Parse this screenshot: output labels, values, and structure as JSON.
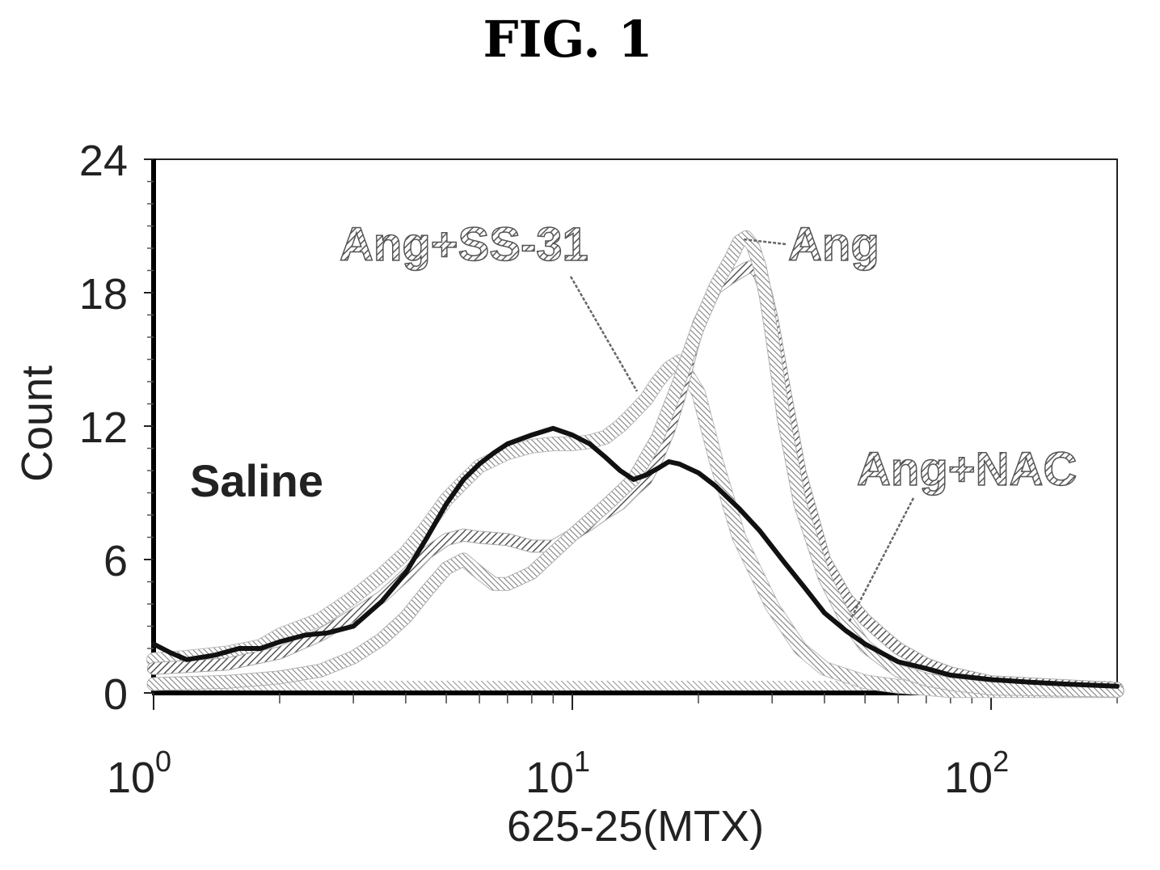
{
  "figure_title": "FIG. 1",
  "chart_data": {
    "type": "line",
    "title": "",
    "xlabel": "625-25(MTX)",
    "ylabel": "Count",
    "x_scale": "log",
    "xlim": [
      1,
      200
    ],
    "ylim": [
      0,
      24
    ],
    "grid": false,
    "y_ticks": [
      "0",
      "6",
      "12",
      "18",
      "24"
    ],
    "y_tick_values": [
      0,
      6,
      12,
      18,
      24
    ],
    "x_ticks": [
      {
        "base": "10",
        "exp": "0",
        "value": 1
      },
      {
        "base": "10",
        "exp": "1",
        "value": 10
      },
      {
        "base": "10",
        "exp": "2",
        "value": 100
      }
    ],
    "series": [
      {
        "name": "Saline",
        "color": "#111111",
        "x": [
          1.0,
          1.1,
          1.2,
          1.4,
          1.6,
          1.8,
          2.0,
          2.3,
          2.6,
          3.0,
          3.5,
          4.0,
          4.5,
          5.0,
          5.5,
          6.0,
          6.5,
          7.0,
          8.0,
          9.0,
          10.0,
          11.0,
          12.0,
          13.0,
          14.0,
          15.0,
          16.0,
          17.0,
          18.0,
          20.0,
          22.0,
          25.0,
          28.0,
          32.0,
          36.0,
          40.0,
          45.0,
          50.0,
          60.0,
          70.0,
          80.0,
          100.0,
          120.0,
          150.0,
          200.0
        ],
        "y": [
          2.2,
          1.8,
          1.5,
          1.7,
          2.0,
          2.0,
          2.3,
          2.6,
          2.7,
          3.0,
          4.1,
          5.4,
          7.0,
          8.5,
          9.6,
          10.3,
          10.8,
          11.2,
          11.6,
          11.9,
          11.6,
          11.2,
          10.6,
          10.0,
          9.6,
          9.8,
          10.1,
          10.4,
          10.3,
          9.9,
          9.3,
          8.3,
          7.3,
          5.9,
          4.7,
          3.6,
          2.8,
          2.2,
          1.4,
          1.1,
          0.8,
          0.6,
          0.5,
          0.4,
          0.3
        ]
      },
      {
        "name": "Ang+SS-31",
        "color": "#8a8a8a",
        "x": [
          1.0,
          1.2,
          1.5,
          1.8,
          2.0,
          2.5,
          3.0,
          3.5,
          4.0,
          4.5,
          5.0,
          5.5,
          6.0,
          7.0,
          8.0,
          9.0,
          10.0,
          11.0,
          12.0,
          13.0,
          14.0,
          15.0,
          16.0,
          17.0,
          18.0,
          20.0,
          22.0,
          25.0,
          30.0,
          35.0,
          40.0,
          50.0,
          60.0,
          70.0,
          80.0,
          100.0,
          200.0
        ],
        "y": [
          1.5,
          1.6,
          1.8,
          2.1,
          2.6,
          3.3,
          4.3,
          5.3,
          6.3,
          7.5,
          8.7,
          9.5,
          10.2,
          10.8,
          11.1,
          11.2,
          11.2,
          11.3,
          11.5,
          12.0,
          12.6,
          13.2,
          14.0,
          14.6,
          14.9,
          13.5,
          10.5,
          7.0,
          3.9,
          2.0,
          1.1,
          0.5,
          0.3,
          0.2,
          0.1,
          0.1,
          0.1
        ]
      },
      {
        "name": "Ang",
        "color": "#9a9a9a",
        "x": [
          1.0,
          1.5,
          2.0,
          2.5,
          3.0,
          3.5,
          4.0,
          4.5,
          5.0,
          5.5,
          6.0,
          6.5,
          7.0,
          8.0,
          9.0,
          10.0,
          12.0,
          14.0,
          16.0,
          17.0,
          18.0,
          19.0,
          20.0,
          22.0,
          24.0,
          25.0,
          26.0,
          27.0,
          28.0,
          29.0,
          30.0,
          32.0,
          35.0,
          40.0,
          45.0,
          50.0,
          60.0,
          70.0,
          80.0,
          100.0,
          200.0
        ],
        "y": [
          0.4,
          0.5,
          0.7,
          1.0,
          1.6,
          2.4,
          3.4,
          4.6,
          5.6,
          6.0,
          5.4,
          4.9,
          4.9,
          5.4,
          6.3,
          7.1,
          8.4,
          9.6,
          11.5,
          12.8,
          14.0,
          15.3,
          16.5,
          18.3,
          19.6,
          20.3,
          20.5,
          20.1,
          19.2,
          17.8,
          16.0,
          12.3,
          8.5,
          5.2,
          3.3,
          2.1,
          1.0,
          0.6,
          0.4,
          0.2,
          0.1
        ]
      },
      {
        "name": "Ang+NAC",
        "color": "#7a7a7a",
        "x": [
          1.0,
          1.5,
          2.0,
          2.5,
          3.0,
          3.5,
          4.0,
          4.5,
          5.0,
          5.5,
          6.0,
          7.0,
          8.0,
          9.0,
          10.0,
          11.0,
          12.0,
          13.0,
          14.0,
          15.0,
          16.0,
          17.0,
          18.0,
          19.0,
          20.0,
          22.0,
          24.0,
          26.0,
          27.0,
          28.0,
          29.0,
          30.0,
          32.0,
          35.0,
          40.0,
          45.0,
          50.0,
          55.0,
          60.0,
          70.0,
          80.0,
          100.0,
          200.0
        ],
        "y": [
          1.1,
          1.3,
          1.8,
          2.6,
          3.5,
          4.3,
          5.3,
          6.3,
          6.9,
          7.1,
          7.0,
          6.9,
          6.6,
          6.6,
          7.1,
          7.6,
          8.1,
          8.5,
          9.1,
          9.6,
          10.6,
          11.8,
          13.3,
          15.0,
          16.6,
          18.2,
          18.7,
          19.1,
          19.2,
          18.8,
          18.0,
          16.8,
          13.8,
          9.9,
          6.0,
          4.3,
          3.3,
          2.6,
          2.0,
          1.3,
          0.9,
          0.5,
          0.2
        ]
      }
    ],
    "labels": [
      {
        "text": "Saline",
        "series": "Saline"
      },
      {
        "text": "Ang+SS-31",
        "series": "Ang+SS-31"
      },
      {
        "text": "Ang",
        "series": "Ang"
      },
      {
        "text": "Ang+NAC",
        "series": "Ang+NAC"
      }
    ]
  }
}
